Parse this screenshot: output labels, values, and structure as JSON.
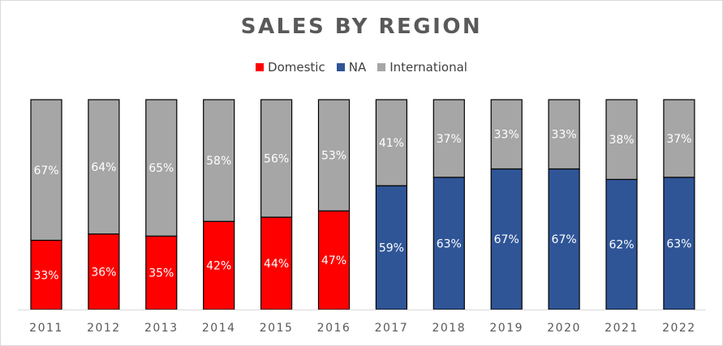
{
  "chart_data": {
    "type": "bar",
    "stacked": true,
    "title": "SALES BY REGION",
    "xlabel": "",
    "ylabel": "",
    "ylim": [
      0,
      100
    ],
    "legend_position": "top",
    "grid": false,
    "categories": [
      "2011",
      "2012",
      "2013",
      "2014",
      "2015",
      "2016",
      "2017",
      "2018",
      "2019",
      "2020",
      "2021",
      "2022"
    ],
    "series": [
      {
        "name": "Domestic",
        "color": "#ff0000",
        "values": [
          33,
          36,
          35,
          42,
          44,
          47,
          null,
          null,
          null,
          null,
          null,
          null
        ]
      },
      {
        "name": "NA",
        "color": "#2f5597",
        "values": [
          null,
          null,
          null,
          null,
          null,
          null,
          59,
          63,
          67,
          67,
          62,
          63
        ]
      },
      {
        "name": "International",
        "color": "#a6a6a6",
        "values": [
          67,
          64,
          65,
          58,
          56,
          53,
          41,
          37,
          33,
          33,
          38,
          37
        ]
      }
    ],
    "value_suffix": "%"
  }
}
